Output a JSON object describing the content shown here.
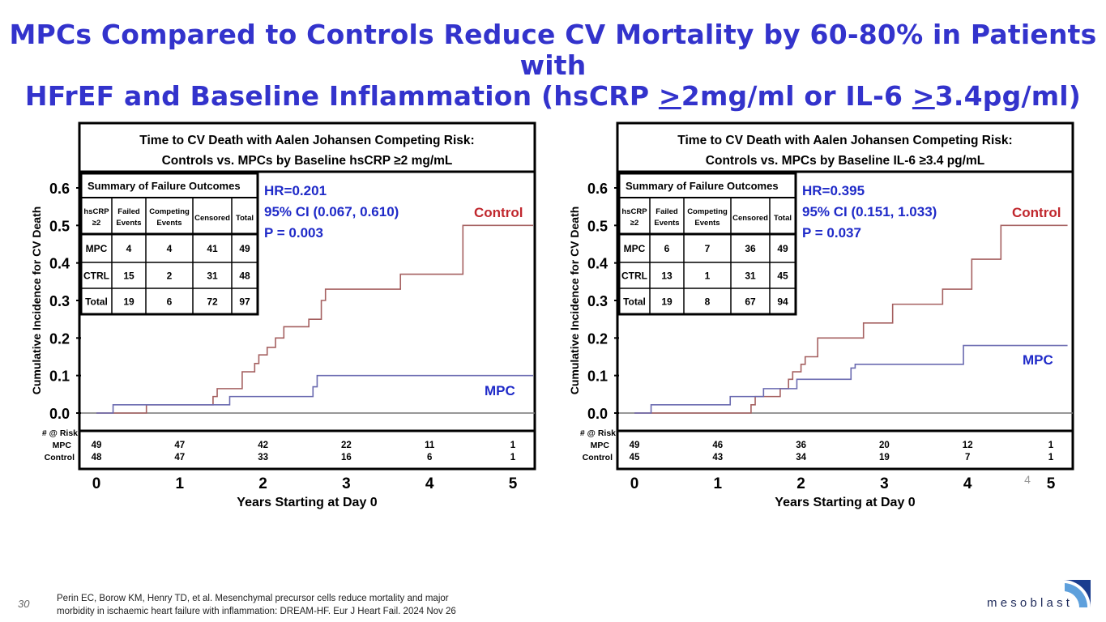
{
  "title": {
    "line1": "MPCs Compared to Controls Reduce CV Mortality by 60-80% in Patients with",
    "line2_a": "HFrEF and Baseline Inflammation (hsCRP ",
    "gt1": ">",
    "line2_b": "2mg/ml or IL-6 ",
    "gt2": ">",
    "line2_c": "3.4pg/ml)"
  },
  "colors": {
    "title": "#3333cc",
    "control": "#a56060",
    "mpc": "#6a6ab0",
    "annot": "#1f2ac8",
    "control_label": "#c0272d"
  },
  "chart_data": [
    {
      "type": "line",
      "title_line1": "Time to CV Death with Aalen Johansen Competing Risk:",
      "title_line2": "Controls vs. MPCs by Baseline hsCRP ≥2 mg/mL",
      "ylabel": "Cumulative Incidence for CV Death",
      "xlabel": "Years Starting at Day 0",
      "xlim": [
        0,
        5
      ],
      "ylim": [
        0,
        0.6
      ],
      "x_ticks": [
        "0",
        "1",
        "2",
        "3",
        "4",
        "5"
      ],
      "y_ticks": [
        "0.0",
        "0.1",
        "0.2",
        "0.3",
        "0.4",
        "0.5",
        "0.6"
      ],
      "series": [
        {
          "name": "Control",
          "steps": [
            [
              0,
              0
            ],
            [
              0.6,
              0.022
            ],
            [
              1.4,
              0.044
            ],
            [
              1.45,
              0.065
            ],
            [
              1.75,
              0.11
            ],
            [
              1.9,
              0.132
            ],
            [
              1.95,
              0.155
            ],
            [
              2.05,
              0.175
            ],
            [
              2.15,
              0.2
            ],
            [
              2.25,
              0.23
            ],
            [
              2.55,
              0.25
            ],
            [
              2.7,
              0.3
            ],
            [
              2.75,
              0.33
            ],
            [
              3.65,
              0.37
            ],
            [
              4.4,
              0.5
            ],
            [
              5.3,
              0.5
            ]
          ]
        },
        {
          "name": "MPC",
          "steps": [
            [
              0,
              0
            ],
            [
              0.2,
              0.022
            ],
            [
              1.6,
              0.044
            ],
            [
              2.6,
              0.07
            ],
            [
              2.65,
              0.1
            ],
            [
              5.3,
              0.1
            ]
          ]
        }
      ],
      "series_labels": {
        "control": "Control",
        "mpc": "MPC"
      },
      "annotation": {
        "hr": "HR=0.201",
        "ci": "95% CI (0.067, 0.610)",
        "p": "P = 0.003"
      },
      "summary": {
        "caption": "Summary of Failure Outcomes",
        "headers": [
          [
            "hsCRP",
            "≥2"
          ],
          [
            "Failed",
            "Events"
          ],
          [
            "Competing",
            "Events"
          ],
          [
            "Censored"
          ],
          [
            "Total"
          ]
        ],
        "rows": [
          [
            "MPC",
            "4",
            "4",
            "41",
            "49"
          ],
          [
            "CTRL",
            "15",
            "2",
            "31",
            "48"
          ],
          [
            "Total",
            "19",
            "6",
            "72",
            "97"
          ]
        ]
      },
      "risk_labels": [
        "# @ Risk",
        "MPC",
        "Control"
      ],
      "risk_mpc": [
        "49",
        "47",
        "42",
        "22",
        "11",
        "1"
      ],
      "risk_control": [
        "48",
        "47",
        "33",
        "16",
        "6",
        "1"
      ]
    },
    {
      "type": "line",
      "title_line1": "Time to CV Death with Aalen Johansen Competing Risk:",
      "title_line2": "Controls vs. MPCs by Baseline IL-6 ≥3.4 pg/mL",
      "ylabel": "Cumulative Incidence for CV Death",
      "xlabel": "Years Starting at Day 0",
      "xlim": [
        0,
        5
      ],
      "ylim": [
        0,
        0.6
      ],
      "x_ticks": [
        "0",
        "1",
        "2",
        "3",
        "4",
        "5"
      ],
      "y_ticks": [
        "0.0",
        "0.1",
        "0.2",
        "0.3",
        "0.4",
        "0.5",
        "0.6"
      ],
      "series": [
        {
          "name": "Control",
          "steps": [
            [
              0,
              0
            ],
            [
              1.4,
              0.022
            ],
            [
              1.45,
              0.044
            ],
            [
              1.75,
              0.065
            ],
            [
              1.85,
              0.09
            ],
            [
              1.9,
              0.11
            ],
            [
              2.0,
              0.13
            ],
            [
              2.05,
              0.15
            ],
            [
              2.2,
              0.2
            ],
            [
              2.75,
              0.24
            ],
            [
              3.1,
              0.29
            ],
            [
              3.7,
              0.33
            ],
            [
              4.05,
              0.41
            ],
            [
              4.4,
              0.5
            ],
            [
              5.2,
              0.5
            ]
          ]
        },
        {
          "name": "MPC",
          "steps": [
            [
              0,
              0
            ],
            [
              0.2,
              0.022
            ],
            [
              1.15,
              0.044
            ],
            [
              1.55,
              0.065
            ],
            [
              1.95,
              0.09
            ],
            [
              2.6,
              0.12
            ],
            [
              2.65,
              0.13
            ],
            [
              3.95,
              0.18
            ],
            [
              5.2,
              0.18
            ]
          ]
        }
      ],
      "series_labels": {
        "control": "Control",
        "mpc": "MPC"
      },
      "annotation": {
        "hr": "HR=0.395",
        "ci": "95% CI (0.151, 1.033)",
        "p": "P = 0.037"
      },
      "summary": {
        "caption": "Summary of Failure Outcomes",
        "headers": [
          [
            "hsCRP",
            "≥2"
          ],
          [
            "Failed",
            "Events"
          ],
          [
            "Competing",
            "Events"
          ],
          [
            "Censored"
          ],
          [
            "Total"
          ]
        ],
        "rows": [
          [
            "MPC",
            "6",
            "7",
            "36",
            "49"
          ],
          [
            "CTRL",
            "13",
            "1",
            "31",
            "45"
          ],
          [
            "Total",
            "19",
            "8",
            "67",
            "94"
          ]
        ]
      },
      "risk_labels": [
        "# @ Risk",
        "MPC",
        "Control"
      ],
      "risk_mpc": [
        "49",
        "46",
        "36",
        "20",
        "12",
        "1"
      ],
      "risk_control": [
        "45",
        "43",
        "34",
        "19",
        "7",
        "1"
      ],
      "extra_mark": "4"
    }
  ],
  "footer": {
    "page_number": "30",
    "citation_line1": "Perin EC, Borow KM, Henry TD, et al. Mesenchymal precursor cells reduce mortality and major",
    "citation_line2": "morbidity in ischaemic heart failure with inflammation: DREAM-HF. Eur J Heart Fail. 2024 Nov 26"
  },
  "logo": {
    "text": "mesoblast"
  }
}
